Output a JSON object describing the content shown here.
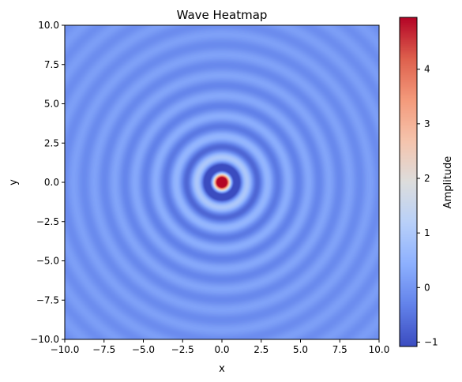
{
  "chart_data": {
    "type": "heatmap",
    "title": "Wave Heatmap",
    "xlabel": "x",
    "ylabel": "y",
    "xlim": [
      -10,
      10
    ],
    "ylim": [
      -10,
      10
    ],
    "x_ticks": [
      -10,
      -7.5,
      -5,
      -2.5,
      0,
      2.5,
      5,
      7.5,
      10
    ],
    "x_tick_labels": [
      "−10.0",
      "−7.5",
      "−5.0",
      "−2.5",
      "0.0",
      "2.5",
      "5.0",
      "7.5",
      "10.0"
    ],
    "y_ticks": [
      -10,
      -7.5,
      -5,
      -2.5,
      0,
      2.5,
      5,
      7.5,
      10
    ],
    "y_tick_labels": [
      "−10.0",
      "−7.5",
      "−5.0",
      "−2.5",
      "0.0",
      "2.5",
      "5.0",
      "7.5",
      "10.0"
    ],
    "function": "z = sin(k*r) / (c*r), r = sqrt(x^2 + y^2), k = pi/0.65, c = 0.63; z(0,0) = max",
    "colormap": "coolwarm",
    "grid": false,
    "colorbar": {
      "label": "Amplitude",
      "range": [
        -1.08,
        4.95
      ],
      "ticks": [
        -1,
        0,
        1,
        2,
        3,
        4
      ],
      "tick_labels": [
        "−1",
        "0",
        "1",
        "2",
        "3",
        "4"
      ]
    },
    "colors": {
      "low": "#3b4cc0",
      "mid": "#dddddd",
      "high": "#b40426",
      "axis": "#000000",
      "background": "#ffffff"
    }
  }
}
